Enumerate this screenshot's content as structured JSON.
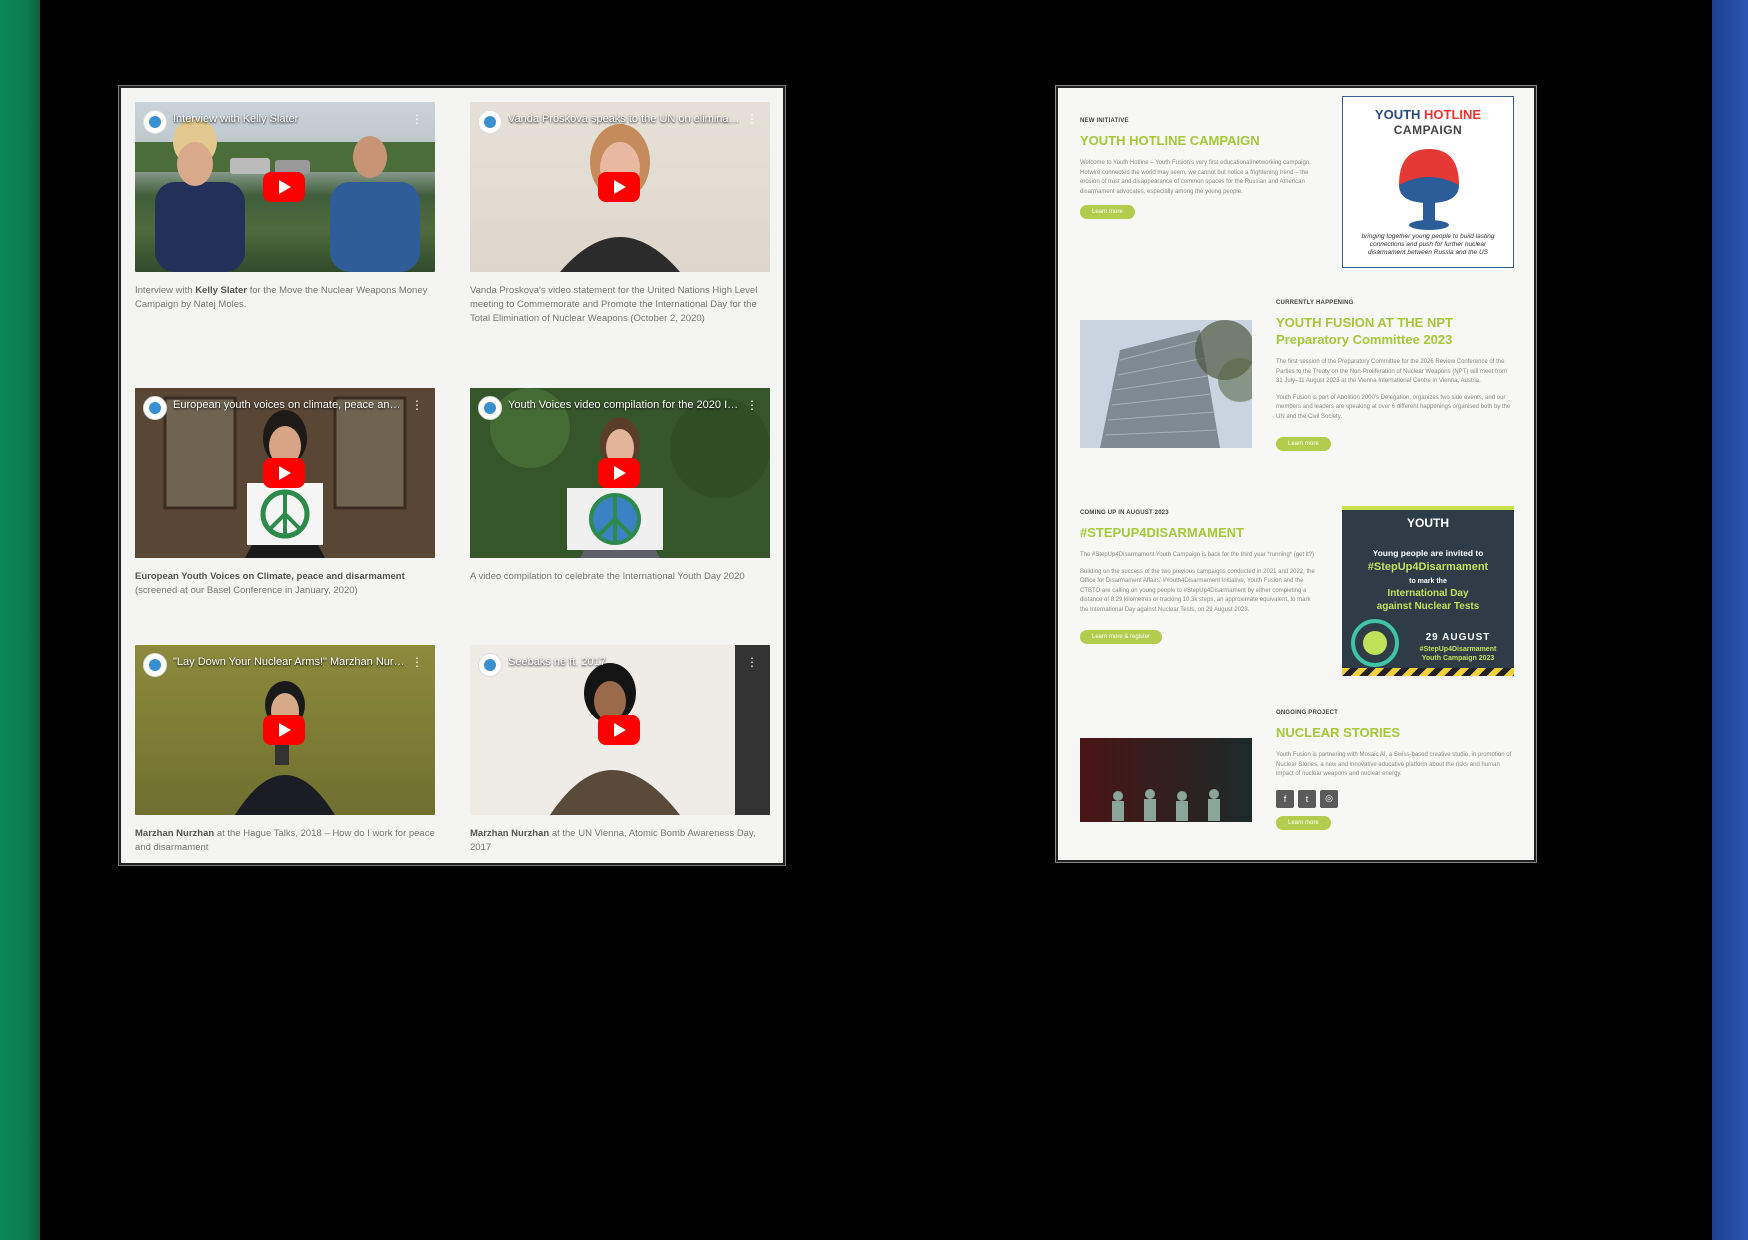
{
  "videos": [
    {
      "title": "Interview with Kelly Slater",
      "caption_bold": "Kelly Slater",
      "caption_pre": "Interview with ",
      "caption_post": " for the Move the Nuclear Weapons Money Campaign by Natej Moles."
    },
    {
      "title": "Vanda Proskova speaks to the UN on eliminati...",
      "caption_pre": "Vanda Proskova's video statement for the United Nations High Level meeting to Commemorate and Promote the International Day for the Total Elimination of Nuclear Weapons (October 2, 2020)",
      "caption_bold": "",
      "caption_post": ""
    },
    {
      "title": "European youth voices on climate, peace and d...",
      "caption_pre": "",
      "caption_bold": "European Youth Voices on Climate, peace and disarmament",
      "caption_post": " (screened at our Basel Conference in January, 2020)"
    },
    {
      "title": "Youth Voices video compilation for the 2020 In...",
      "caption_pre": "A video compilation to celebrate the International Youth Day 2020",
      "caption_bold": "",
      "caption_post": ""
    },
    {
      "title": "\"Lay Down Your Nuclear Arms!\" Marzhan Nurzh...",
      "caption_pre": "",
      "caption_bold": "Marzhan Nurzhan",
      "caption_post": " at the Hague Talks, 2018 – How do I work for peace and disarmament"
    },
    {
      "title": "Seebaks ne ft. 2017",
      "caption_pre": "",
      "caption_bold": "Marzhan Nurzhan",
      "caption_post": " at the UN Vienna, Atomic Bomb Awareness Day, 2017"
    }
  ],
  "sections": {
    "hotline": {
      "kicker": "NEW INITIATIVE",
      "heading": "YOUTH HOTLINE CAMPAIGN",
      "body": "Welcome to Youth Hotline – Youth Fusion's very first educational/networking campaign. Hotwire connected the world may seem, we cannot but notice a frightening trend – the erosion of trust and disappearance of common spaces for the Russian and American disarmament advocates, especially among the young people.",
      "button": "Learn more",
      "card_word1": "YOUTH",
      "card_word2": "HOTLINE",
      "card_word3": "CAMPAIGN",
      "card_tagline": "bringing together young people to build lasting connections and push for further nuclear disarmament between Russia and the US"
    },
    "npt": {
      "kicker": "CURRENTLY HAPPENING",
      "heading": "YOUTH FUSION AT THE NPT Preparatory Committee 2023",
      "body1": "The first session of the Preparatory Committee for the 2026 Review Conference of the Parties to the Treaty on the Non-Proliferation of Nuclear Weapons (NPT) will meet from 31 July–11 August 2023 at the Vienna International Centre in Vienna, Austria.",
      "body2": "Youth Fusion is part of Abolition 2000's Delegation, organizes two side events, and our members and leaders are speaking at over 6 different happenings organised both by the UN and the Civil Society.",
      "button": "Learn more"
    },
    "stepup": {
      "kicker": "COMING UP IN AUGUST 2023",
      "heading": "#STEPUP4DISARMAMENT",
      "body1": "The #StepUp4Disarmament Youth Campaign is back for the third year *running* (get it?)",
      "body2": "Building on the success of the two previous campaigns conducted in 2021 and 2022, the Office for Disarmament Affairs' #Youth4Disarmament Initiative, Youth Fusion and the CTBTO are calling on young people to #StepUp4Disarmament by either completing a distance of 8.29 kilometres or tracking 10.3k steps, an approximate equivalent, to mark the International Day against Nuclear Tests, on 29 August 2023.",
      "button": "Learn more & register",
      "poster_line1": "Young people are invited to",
      "poster_line2": "#StepUp4Disarmament",
      "poster_line3": "to mark the",
      "poster_line4": "International Day",
      "poster_line5": "against Nuclear Tests",
      "poster_line6": "29 AUGUST",
      "poster_line7": "#StepUp4Disarmament",
      "poster_line8": "Youth Campaign 2023",
      "poster_logo": "YOUTH"
    },
    "stories": {
      "kicker": "ONGOING PROJECT",
      "heading": "NUCLEAR STORIES",
      "body": "Youth Fusion is partnering with Mosaic AI, a Swiss-based creative studio, in promotion of Nuclear Stories, a new and innovative educative platform about the risks and human impact of nuclear weapons and nuclear energy.",
      "button": "Learn more"
    }
  },
  "icons": [
    "facebook-icon",
    "twitter-icon",
    "instagram-icon"
  ]
}
